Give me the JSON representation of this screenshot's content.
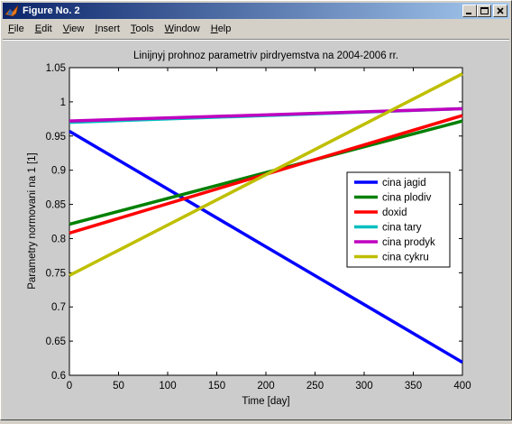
{
  "window": {
    "title": "Figure No. 2"
  },
  "menu": {
    "items": [
      {
        "key": "file",
        "first": "F",
        "rest": "ile"
      },
      {
        "key": "edit",
        "first": "E",
        "rest": "dit"
      },
      {
        "key": "view",
        "first": "V",
        "rest": "iew"
      },
      {
        "key": "insert",
        "first": "I",
        "rest": "nsert"
      },
      {
        "key": "tools",
        "first": "T",
        "rest": "ools"
      },
      {
        "key": "window",
        "first": "W",
        "rest": "indow"
      },
      {
        "key": "help",
        "first": "H",
        "rest": "elp"
      }
    ]
  },
  "colors": {
    "titlebar_start": "#0a246a",
    "titlebar_end": "#a6caf0",
    "figure_background": "#cccccc",
    "axes_background": "#ffffff"
  },
  "chart_data": {
    "type": "line",
    "title": "Linijnyj prohnoz parametriv pirdryemstva na 2004-2006 rr.",
    "xlabel": "Time [day]",
    "ylabel": "Parametry normovani na 1 [1]",
    "xlim": [
      0,
      400
    ],
    "ylim": [
      0.6,
      1.05
    ],
    "xticks": [
      0,
      50,
      100,
      150,
      200,
      250,
      300,
      350,
      400
    ],
    "yticks": [
      0.6,
      0.65,
      0.7,
      0.75,
      0.8,
      0.85,
      0.9,
      0.95,
      1,
      1.05
    ],
    "ytick_labels": [
      "0.6",
      "0.65",
      "0.7",
      "0.75",
      "0.8",
      "0.85",
      "0.9",
      "0.95",
      "1",
      "1.05"
    ],
    "grid": false,
    "legend_position": "right",
    "series": [
      {
        "name": "cina jagid",
        "color": "#0000ff",
        "x": [
          0,
          400
        ],
        "y": [
          0.957,
          0.619
        ]
      },
      {
        "name": "cina plodiv",
        "color": "#008000",
        "x": [
          0,
          400
        ],
        "y": [
          0.821,
          0.972
        ]
      },
      {
        "name": "doxid",
        "color": "#ff0000",
        "x": [
          0,
          400
        ],
        "y": [
          0.808,
          0.98
        ]
      },
      {
        "name": "cina tary",
        "color": "#00bfbf",
        "x": [
          0,
          400
        ],
        "y": [
          0.97,
          0.99
        ]
      },
      {
        "name": "cina prodyk",
        "color": "#bf00bf",
        "x": [
          0,
          400
        ],
        "y": [
          0.972,
          0.99
        ]
      },
      {
        "name": "cina cykru",
        "color": "#bfbf00",
        "x": [
          0,
          400
        ],
        "y": [
          0.746,
          1.041
        ]
      }
    ]
  }
}
